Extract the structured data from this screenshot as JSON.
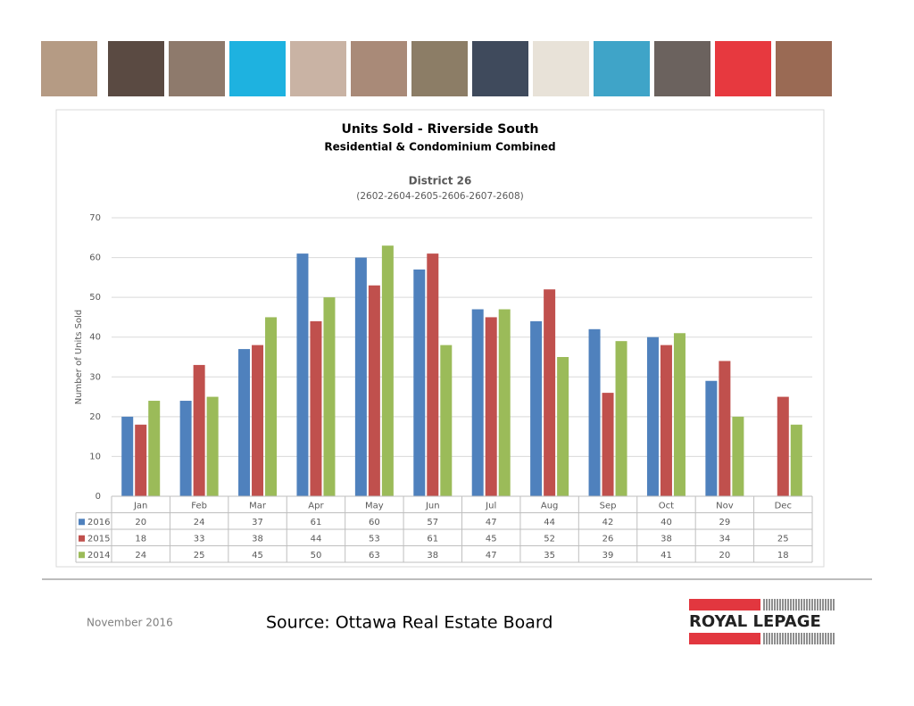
{
  "chart_data": {
    "type": "bar",
    "title": "Units Sold - Riverside South",
    "subtitle": "Residential & Condominium Combined",
    "district": "District 26",
    "district_codes": "(2602-2604-2605-2606-2607-2608)",
    "y_label": "Number of Units Sold",
    "categories": [
      "Jan",
      "Feb",
      "Mar",
      "Apr",
      "May",
      "Jun",
      "Jul",
      "Aug",
      "Sep",
      "Oct",
      "Nov",
      "Dec"
    ],
    "series": [
      {
        "name": "2016",
        "color": "#4f81bd",
        "values": [
          20,
          24,
          37,
          61,
          60,
          57,
          47,
          44,
          42,
          40,
          29,
          null
        ]
      },
      {
        "name": "2015",
        "color": "#c0504d",
        "values": [
          18,
          33,
          38,
          44,
          53,
          61,
          45,
          52,
          26,
          38,
          34,
          25
        ]
      },
      {
        "name": "2014",
        "color": "#9bbb59",
        "values": [
          24,
          25,
          45,
          50,
          63,
          38,
          47,
          35,
          39,
          41,
          20,
          18
        ]
      }
    ],
    "ylim": [
      0,
      70
    ],
    "yticks": [
      0,
      10,
      20,
      30,
      40,
      50,
      60,
      70
    ],
    "grid": true,
    "data_table": true
  },
  "footer": {
    "date": "November 2016",
    "source": "Source: Ottawa Real Estate Board",
    "logo": "ROYAL LEPAGE"
  }
}
